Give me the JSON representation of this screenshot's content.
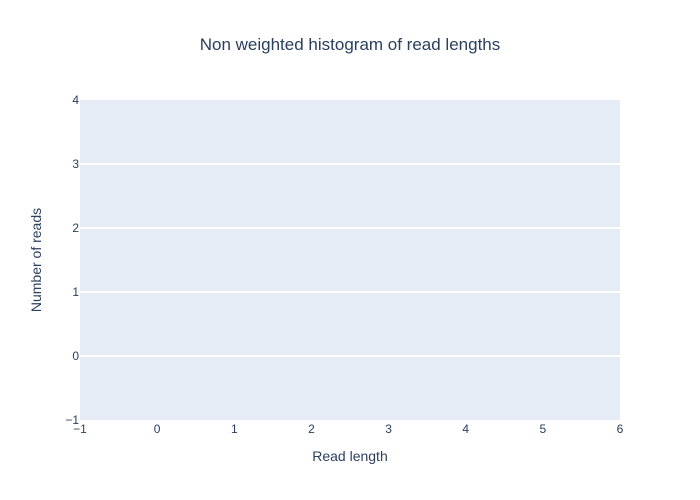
{
  "chart_data": {
    "type": "bar",
    "title": "Non weighted histogram of read lengths",
    "xlabel": "Read length",
    "ylabel": "Number of reads",
    "xlim": [
      -1,
      6
    ],
    "ylim": [
      -1,
      4
    ],
    "x_ticks": [
      "−1",
      "0",
      "1",
      "2",
      "3",
      "4",
      "5",
      "6"
    ],
    "y_ticks": [
      "−1",
      "0",
      "1",
      "2",
      "3",
      "4"
    ],
    "series": [],
    "grid": true,
    "legend": "none",
    "colors": {
      "plot_background": "#e5ecf6",
      "gridline": "#ffffff",
      "text": "#2a3f5f"
    }
  }
}
